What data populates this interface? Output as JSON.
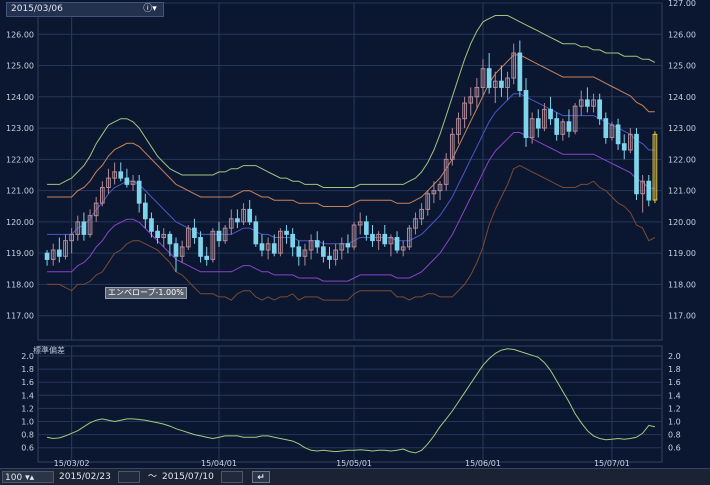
{
  "header": {
    "date": "2015/03/06",
    "info_icon": "info-icon",
    "dropdown_icon": "chevron-down-icon"
  },
  "envelope_label": "エンベロープ-1.00%",
  "sub_title": "標準偏差",
  "bottom_bar": {
    "count": "100",
    "start_date": "2015/02/23",
    "separator": "～",
    "end_date": "2015/07/10",
    "apply_icon": "return-icon"
  },
  "colors": {
    "bg": "#0b1730",
    "up": "#b08a98",
    "down": "#7fd4ec",
    "ma": "#4c56c8",
    "env_plus": "#c9825b",
    "env_minus": "#8a44c8",
    "bb_plus2": "#a1c47f",
    "bb_minus2": "#7a4a33",
    "stddev": "#9fcc7f"
  },
  "chart_data": [
    {
      "type": "candlestick",
      "ylim": [
        116.5,
        127.0
      ],
      "y_ticks": [
        "117.00",
        "118.00",
        "119.00",
        "120.00",
        "121.00",
        "122.00",
        "123.00",
        "124.00",
        "125.00",
        "126.00",
        "127.00"
      ],
      "x_ticks": [
        "15/03/02",
        "15/04/01",
        "15/05/01",
        "15/06/01",
        "15/07/01"
      ],
      "x_tick_index": [
        4,
        28,
        50,
        71,
        92
      ],
      "ohlc": [
        [
          119.0,
          119.1,
          118.6,
          118.8
        ],
        [
          118.8,
          119.3,
          118.6,
          119.1
        ],
        [
          119.1,
          119.5,
          118.7,
          118.9
        ],
        [
          118.9,
          119.6,
          118.8,
          119.4
        ],
        [
          119.4,
          119.8,
          119.0,
          119.6
        ],
        [
          119.6,
          120.2,
          119.4,
          120.0
        ],
        [
          120.0,
          120.3,
          119.4,
          119.6
        ],
        [
          119.6,
          120.4,
          119.5,
          120.2
        ],
        [
          120.2,
          120.8,
          120.0,
          120.6
        ],
        [
          120.6,
          121.3,
          120.5,
          121.1
        ],
        [
          121.1,
          121.7,
          120.9,
          121.4
        ],
        [
          121.4,
          121.9,
          121.2,
          121.6
        ],
        [
          121.6,
          121.9,
          121.3,
          121.4
        ],
        [
          121.4,
          121.7,
          121.1,
          121.2
        ],
        [
          121.2,
          121.5,
          121.0,
          121.3
        ],
        [
          121.3,
          121.5,
          120.3,
          120.6
        ],
        [
          120.6,
          120.9,
          119.8,
          120.1
        ],
        [
          120.1,
          120.3,
          119.5,
          119.7
        ],
        [
          119.7,
          119.9,
          119.3,
          119.5
        ],
        [
          119.5,
          119.8,
          119.2,
          119.6
        ],
        [
          119.6,
          119.7,
          118.9,
          119.3
        ],
        [
          119.3,
          119.5,
          118.4,
          118.9
        ],
        [
          118.9,
          119.4,
          118.7,
          119.2
        ],
        [
          119.2,
          119.9,
          119.1,
          119.8
        ],
        [
          119.8,
          120.1,
          119.3,
          119.5
        ],
        [
          119.5,
          119.7,
          118.7,
          118.9
        ],
        [
          118.9,
          119.2,
          118.6,
          118.8
        ],
        [
          118.8,
          119.8,
          118.7,
          119.7
        ],
        [
          119.7,
          120.0,
          119.2,
          119.4
        ],
        [
          119.4,
          119.9,
          119.3,
          119.8
        ],
        [
          119.8,
          120.4,
          119.6,
          120.1
        ],
        [
          120.1,
          120.4,
          119.8,
          120.0
        ],
        [
          120.0,
          120.6,
          119.9,
          120.4
        ],
        [
          120.4,
          120.7,
          119.9,
          120.0
        ],
        [
          120.0,
          120.2,
          119.2,
          119.3
        ],
        [
          119.3,
          119.6,
          118.9,
          119.1
        ],
        [
          119.1,
          119.5,
          118.8,
          119.3
        ],
        [
          119.3,
          119.6,
          118.9,
          119.0
        ],
        [
          119.0,
          119.8,
          118.9,
          119.7
        ],
        [
          119.7,
          119.9,
          119.3,
          119.6
        ],
        [
          119.6,
          119.8,
          118.9,
          119.2
        ],
        [
          119.2,
          119.4,
          118.6,
          118.9
        ],
        [
          118.9,
          119.3,
          118.6,
          119.1
        ],
        [
          119.1,
          119.6,
          118.8,
          119.4
        ],
        [
          119.4,
          119.7,
          119.0,
          119.2
        ],
        [
          119.2,
          119.4,
          118.7,
          118.9
        ],
        [
          118.9,
          119.2,
          118.5,
          118.8
        ],
        [
          118.8,
          119.3,
          118.6,
          119.1
        ],
        [
          119.1,
          119.5,
          118.8,
          119.3
        ],
        [
          119.3,
          119.6,
          119.0,
          119.2
        ],
        [
          119.2,
          120.0,
          119.1,
          119.9
        ],
        [
          119.9,
          120.3,
          119.6,
          120.0
        ],
        [
          120.0,
          120.2,
          119.4,
          119.6
        ],
        [
          119.6,
          119.9,
          119.2,
          119.4
        ],
        [
          119.4,
          119.7,
          119.1,
          119.6
        ],
        [
          119.6,
          119.9,
          119.2,
          119.3
        ],
        [
          119.3,
          119.6,
          118.9,
          119.5
        ],
        [
          119.5,
          119.7,
          119.0,
          119.1
        ],
        [
          119.1,
          119.4,
          118.9,
          119.2
        ],
        [
          119.2,
          119.9,
          119.1,
          119.8
        ],
        [
          119.8,
          120.3,
          119.6,
          120.1
        ],
        [
          120.1,
          120.6,
          119.9,
          120.4
        ],
        [
          120.4,
          121.0,
          120.2,
          120.9
        ],
        [
          120.9,
          121.3,
          120.6,
          121.0
        ],
        [
          121.0,
          121.3,
          120.7,
          121.2
        ],
        [
          121.2,
          122.2,
          121.0,
          122.0
        ],
        [
          122.0,
          123.0,
          121.8,
          122.8
        ],
        [
          122.8,
          123.5,
          122.5,
          123.3
        ],
        [
          123.3,
          124.0,
          123.0,
          123.8
        ],
        [
          123.8,
          124.3,
          123.4,
          124.0
        ],
        [
          124.0,
          124.6,
          123.6,
          124.3
        ],
        [
          124.3,
          125.2,
          124.0,
          124.9
        ],
        [
          124.9,
          125.4,
          124.1,
          124.3
        ],
        [
          124.3,
          124.8,
          123.8,
          124.5
        ],
        [
          124.5,
          125.0,
          124.0,
          124.3
        ],
        [
          124.3,
          124.8,
          123.9,
          124.6
        ],
        [
          124.6,
          125.7,
          124.4,
          125.4
        ],
        [
          125.4,
          125.8,
          124.0,
          124.2
        ],
        [
          124.2,
          124.6,
          122.4,
          122.7
        ],
        [
          122.7,
          123.5,
          122.5,
          123.3
        ],
        [
          123.3,
          123.6,
          122.7,
          123.0
        ],
        [
          123.0,
          123.8,
          122.9,
          123.6
        ],
        [
          123.6,
          124.0,
          123.1,
          123.3
        ],
        [
          123.3,
          123.5,
          122.6,
          122.8
        ],
        [
          122.8,
          123.3,
          122.6,
          123.2
        ],
        [
          123.2,
          123.6,
          122.7,
          122.9
        ],
        [
          122.9,
          123.8,
          122.8,
          123.7
        ],
        [
          123.7,
          124.2,
          123.4,
          123.9
        ],
        [
          123.9,
          124.3,
          123.5,
          123.7
        ],
        [
          123.7,
          124.1,
          123.5,
          123.9
        ],
        [
          123.9,
          124.1,
          123.1,
          123.3
        ],
        [
          123.3,
          123.5,
          122.5,
          122.7
        ],
        [
          122.7,
          123.2,
          122.6,
          123.1
        ],
        [
          123.1,
          123.3,
          122.3,
          122.5
        ],
        [
          122.5,
          122.8,
          122.0,
          122.3
        ],
        [
          122.3,
          123.0,
          122.2,
          122.8
        ],
        [
          122.8,
          123.0,
          120.7,
          120.9
        ],
        [
          120.9,
          121.5,
          120.3,
          121.3
        ],
        [
          121.3,
          121.5,
          120.5,
          120.7
        ],
        [
          120.7,
          122.9,
          120.6,
          122.8
        ]
      ],
      "ma": [
        119.6,
        119.6,
        119.6,
        119.6,
        119.6,
        119.8,
        119.9,
        120.1,
        120.4,
        120.6,
        120.9,
        121.1,
        121.2,
        121.3,
        121.3,
        121.2,
        121.0,
        120.8,
        120.6,
        120.4,
        120.2,
        120.0,
        119.9,
        119.8,
        119.7,
        119.6,
        119.6,
        119.6,
        119.6,
        119.6,
        119.6,
        119.7,
        119.8,
        119.8,
        119.7,
        119.6,
        119.6,
        119.5,
        119.5,
        119.5,
        119.5,
        119.4,
        119.4,
        119.4,
        119.4,
        119.3,
        119.3,
        119.3,
        119.3,
        119.3,
        119.4,
        119.5,
        119.5,
        119.5,
        119.5,
        119.5,
        119.5,
        119.4,
        119.4,
        119.4,
        119.5,
        119.6,
        119.8,
        120.0,
        120.2,
        120.5,
        120.8,
        121.2,
        121.6,
        122.0,
        122.4,
        122.8,
        123.2,
        123.5,
        123.7,
        123.9,
        124.1,
        124.1,
        124.0,
        123.9,
        123.8,
        123.7,
        123.6,
        123.5,
        123.4,
        123.4,
        123.4,
        123.4,
        123.4,
        123.4,
        123.3,
        123.2,
        123.1,
        123.0,
        122.9,
        122.8,
        122.6,
        122.5,
        122.3,
        122.3
      ],
      "bb_plus2": [
        121.2,
        121.2,
        121.2,
        121.3,
        121.4,
        121.6,
        121.8,
        122.1,
        122.5,
        122.8,
        123.1,
        123.2,
        123.3,
        123.3,
        123.2,
        123.0,
        122.7,
        122.4,
        122.1,
        121.9,
        121.7,
        121.6,
        121.5,
        121.5,
        121.5,
        121.5,
        121.5,
        121.5,
        121.6,
        121.6,
        121.7,
        121.7,
        121.8,
        121.8,
        121.8,
        121.7,
        121.6,
        121.5,
        121.4,
        121.4,
        121.3,
        121.3,
        121.2,
        121.2,
        121.2,
        121.1,
        121.1,
        121.1,
        121.1,
        121.1,
        121.1,
        121.2,
        121.2,
        121.2,
        121.2,
        121.2,
        121.2,
        121.2,
        121.2,
        121.3,
        121.4,
        121.6,
        121.9,
        122.3,
        122.8,
        123.4,
        124.0,
        124.6,
        125.2,
        125.7,
        126.1,
        126.4,
        126.5,
        126.6,
        126.6,
        126.6,
        126.5,
        126.4,
        126.3,
        126.2,
        126.1,
        126.0,
        125.9,
        125.8,
        125.7,
        125.7,
        125.7,
        125.6,
        125.6,
        125.5,
        125.5,
        125.4,
        125.4,
        125.4,
        125.3,
        125.3,
        125.3,
        125.2,
        125.2,
        125.1
      ],
      "bb_minus2": [
        118.0,
        118.0,
        118.0,
        117.9,
        117.8,
        118.0,
        118.0,
        118.1,
        118.3,
        118.4,
        118.7,
        119.0,
        119.1,
        119.3,
        119.4,
        119.4,
        119.3,
        119.2,
        119.1,
        118.9,
        118.7,
        118.4,
        118.3,
        118.1,
        117.9,
        117.7,
        117.7,
        117.7,
        117.6,
        117.6,
        117.5,
        117.7,
        117.8,
        117.8,
        117.6,
        117.5,
        117.6,
        117.5,
        117.6,
        117.6,
        117.7,
        117.5,
        117.6,
        117.6,
        117.6,
        117.5,
        117.5,
        117.5,
        117.5,
        117.5,
        117.7,
        117.8,
        117.8,
        117.8,
        117.8,
        117.8,
        117.8,
        117.6,
        117.6,
        117.5,
        117.6,
        117.6,
        117.7,
        117.7,
        117.6,
        117.6,
        117.6,
        117.8,
        118.0,
        118.3,
        118.7,
        119.2,
        119.9,
        120.4,
        120.8,
        121.2,
        121.7,
        121.8,
        121.7,
        121.6,
        121.5,
        121.4,
        121.3,
        121.2,
        121.1,
        121.1,
        121.1,
        121.2,
        121.2,
        121.3,
        121.1,
        121.0,
        120.8,
        120.6,
        120.5,
        120.3,
        119.9,
        119.8,
        119.4,
        119.5
      ],
      "envelope_pct": 1.0,
      "envelope_label": "エンベロープ-1.00%"
    },
    {
      "type": "line",
      "title": "標準偏差",
      "ylim": [
        0.5,
        2.1
      ],
      "y_ticks": [
        "0.6",
        "0.8",
        "1.0",
        "1.2",
        "1.4",
        "1.6",
        "1.8",
        "2.0"
      ],
      "values": [
        0.76,
        0.74,
        0.75,
        0.78,
        0.82,
        0.86,
        0.92,
        0.98,
        1.02,
        1.04,
        1.02,
        1.0,
        1.02,
        1.04,
        1.04,
        1.03,
        1.02,
        1.0,
        0.98,
        0.96,
        0.93,
        0.89,
        0.86,
        0.83,
        0.8,
        0.78,
        0.76,
        0.74,
        0.76,
        0.78,
        0.78,
        0.78,
        0.76,
        0.76,
        0.76,
        0.78,
        0.78,
        0.76,
        0.74,
        0.72,
        0.7,
        0.66,
        0.6,
        0.56,
        0.55,
        0.56,
        0.55,
        0.54,
        0.55,
        0.56,
        0.56,
        0.57,
        0.56,
        0.55,
        0.56,
        0.56,
        0.55,
        0.56,
        0.58,
        0.54,
        0.52,
        0.56,
        0.66,
        0.78,
        0.92,
        1.04,
        1.16,
        1.3,
        1.44,
        1.58,
        1.72,
        1.86,
        1.96,
        2.04,
        2.09,
        2.11,
        2.1,
        2.07,
        2.04,
        2.01,
        1.98,
        1.9,
        1.78,
        1.62,
        1.46,
        1.3,
        1.12,
        0.98,
        0.86,
        0.78,
        0.74,
        0.72,
        0.73,
        0.74,
        0.73,
        0.74,
        0.76,
        0.82,
        0.94,
        0.92
      ]
    }
  ]
}
